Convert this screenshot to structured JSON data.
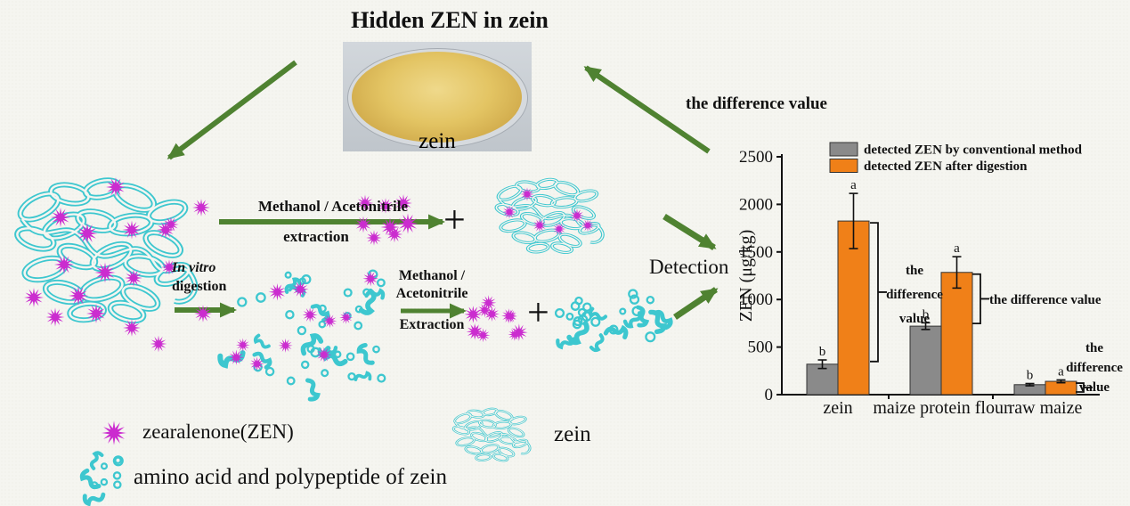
{
  "title": "Hidden ZEN in zein",
  "photo": {
    "label": "zein"
  },
  "flow": {
    "top_arrow_label_line1": "Methanol / Acetonitrile",
    "top_arrow_label_line2": "extraction",
    "invitro_line1": "In vitro",
    "invitro_line2": "digestion",
    "mid_arrow_label_line1": "Methanol /",
    "mid_arrow_label_line2": "Acetonitrile",
    "mid_arrow_label_line3": "Extraction",
    "plus_top": "+",
    "plus_bottom": "+",
    "detection": "Detection",
    "difference_value_top": "the difference value"
  },
  "legend": {
    "zen_label": "zearalenone(ZEN)",
    "zein_label": "zein",
    "amino_label": "amino acid and polypeptide of zein",
    "icons": [
      "zen-star-icon",
      "zein-structure-icon",
      "amino-polypeptide-icon"
    ]
  },
  "colors": {
    "arrow_green": "#4f8231",
    "zen_magenta": "#cb2ccf",
    "zein_cyan": "#3dc7cf",
    "bar_orange": "#f08018",
    "bar_gray": "#8a8a8a"
  },
  "chart_data": {
    "type": "bar",
    "title": "",
    "xlabel": "",
    "ylabel": "ZEN (μg/kg)",
    "ylim": [
      0,
      2500
    ],
    "yticks": [
      0,
      500,
      1000,
      1500,
      2000,
      2500
    ],
    "grid": false,
    "legend_position": "top",
    "categories": [
      "zein",
      "maize protein flour",
      "raw maize"
    ],
    "series": [
      {
        "name": "detected ZEN by conventional method",
        "color": "#8a8a8a",
        "values": [
          320,
          720,
          105
        ],
        "errors": [
          45,
          35,
          12
        ],
        "sig_letters": [
          "b",
          "b",
          "b"
        ]
      },
      {
        "name": "detected ZEN after digestion",
        "color": "#f08018",
        "values": [
          1825,
          1285,
          140
        ],
        "errors": [
          290,
          165,
          15
        ],
        "sig_letters": [
          "a",
          "a",
          "a"
        ]
      }
    ],
    "annotations": [
      {
        "text": "the difference value",
        "target": "zein",
        "lines": [
          "the",
          "difference",
          "value"
        ]
      },
      {
        "text": "the difference value",
        "target": "maize protein flour",
        "lines": [
          "the difference value"
        ]
      },
      {
        "text": "the difference value",
        "target": "raw maize",
        "lines": [
          "the",
          "difference",
          "value"
        ]
      }
    ]
  }
}
